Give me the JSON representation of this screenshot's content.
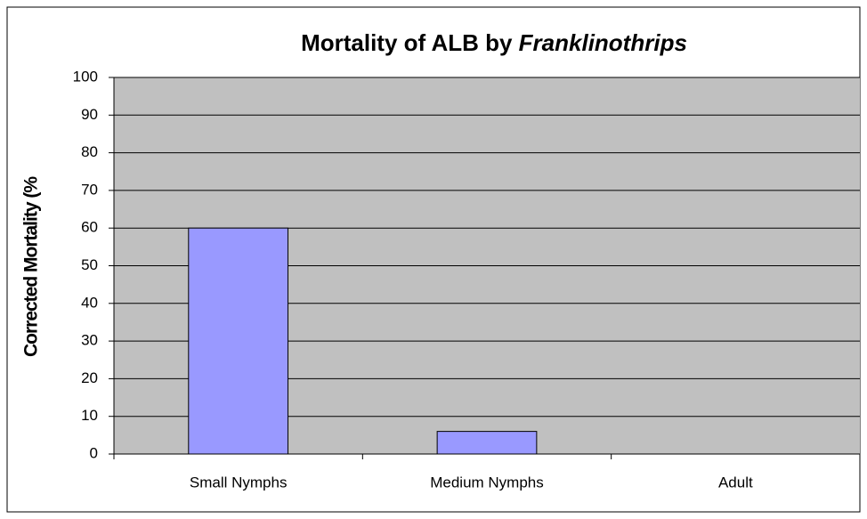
{
  "chart_data": {
    "type": "bar",
    "title": [
      "Mortality of ALB by ",
      "Franklinothrips"
    ],
    "y_label": "Corrected Mortality (%",
    "categories": [
      "Small Nymphs",
      "Medium Nymphs",
      "Adult"
    ],
    "values": [
      60,
      6,
      0
    ],
    "color": "#9999ff",
    "plot_background": "#c0c0c0",
    "ylim": [
      0,
      100
    ],
    "yticks": [
      0,
      10,
      20,
      30,
      40,
      50,
      60,
      70,
      80,
      90,
      100
    ],
    "grid": true
  }
}
